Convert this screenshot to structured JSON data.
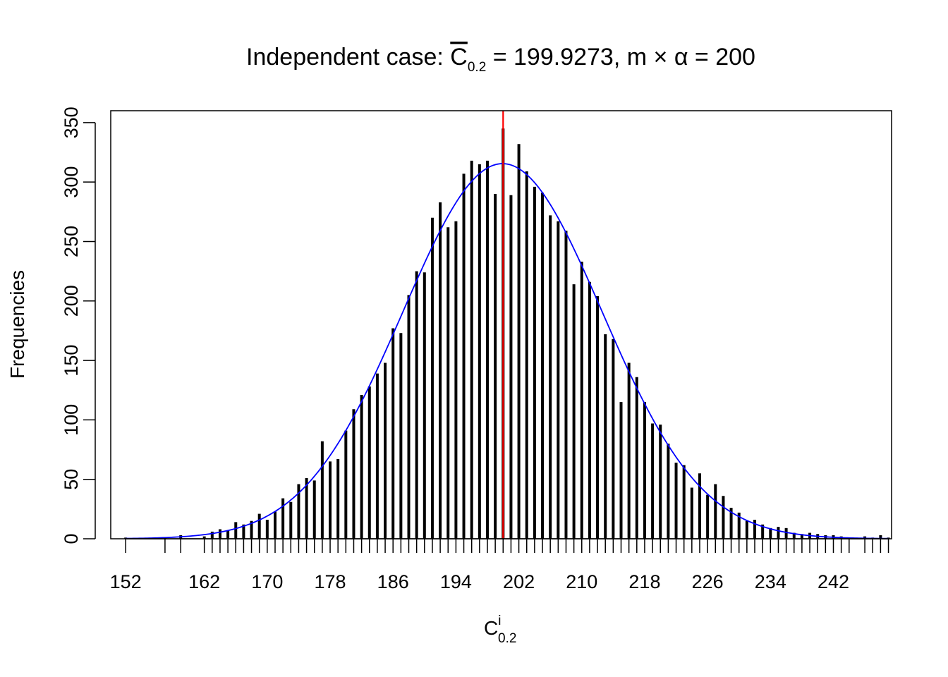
{
  "chart_data": {
    "type": "bar",
    "title": {
      "prefix": "Independent case: ",
      "stat_symbol": "C",
      "stat_subscript": "0.2",
      "stat_value": " = 199.9273, m ",
      "times_symbol": "×",
      "alpha_symbol": "α",
      "tail": " = 200"
    },
    "xlabel": {
      "symbol": "C",
      "superscript": "i",
      "subscript": "0.2"
    },
    "ylabel": "Frequencies",
    "xlim": [
      150.1,
      249.4
    ],
    "ylim": [
      0,
      360
    ],
    "x_ticks": [
      152,
      157,
      159,
      162,
      163,
      164,
      165,
      166,
      167,
      168,
      169,
      170,
      171,
      172,
      173,
      174,
      175,
      176,
      177,
      178,
      179,
      180,
      181,
      182,
      183,
      184,
      185,
      186,
      187,
      188,
      189,
      190,
      191,
      192,
      193,
      194,
      195,
      196,
      197,
      198,
      199,
      200,
      201,
      202,
      203,
      204,
      205,
      206,
      207,
      208,
      209,
      210,
      211,
      212,
      213,
      214,
      215,
      216,
      217,
      218,
      219,
      220,
      221,
      222,
      223,
      224,
      225,
      226,
      227,
      228,
      229,
      230,
      231,
      232,
      233,
      234,
      235,
      236,
      237,
      238,
      239,
      240,
      241,
      242,
      243,
      244,
      246,
      247,
      248,
      249
    ],
    "x_tick_labels": [
      "152",
      "162",
      "170",
      "178",
      "186",
      "194",
      "202",
      "210",
      "218",
      "226",
      "234",
      "242"
    ],
    "y_ticks": [
      0,
      50,
      100,
      150,
      200,
      250,
      300,
      350
    ],
    "y_tick_labels": [
      "0",
      "50",
      "100",
      "150",
      "200",
      "250",
      "300",
      "350"
    ],
    "x": [
      152,
      157,
      159,
      162,
      163,
      164,
      165,
      166,
      167,
      168,
      169,
      170,
      171,
      172,
      173,
      174,
      175,
      176,
      177,
      178,
      179,
      180,
      181,
      182,
      183,
      184,
      185,
      186,
      187,
      188,
      189,
      190,
      191,
      192,
      193,
      194,
      195,
      196,
      197,
      198,
      199,
      200,
      201,
      202,
      203,
      204,
      205,
      206,
      207,
      208,
      209,
      210,
      211,
      212,
      213,
      214,
      215,
      216,
      217,
      218,
      219,
      220,
      221,
      222,
      223,
      224,
      225,
      226,
      227,
      228,
      229,
      230,
      231,
      232,
      233,
      234,
      235,
      236,
      237,
      238,
      239,
      240,
      241,
      242,
      243,
      244,
      246,
      247,
      248,
      249
    ],
    "values": [
      1,
      1,
      3,
      2,
      6,
      8,
      7,
      14,
      12,
      15,
      21,
      16,
      23,
      34,
      31,
      46,
      51,
      49,
      82,
      65,
      67,
      91,
      109,
      121,
      128,
      139,
      148,
      177,
      173,
      205,
      225,
      224,
      270,
      283,
      262,
      267,
      307,
      318,
      315,
      318,
      290,
      345,
      289,
      332,
      309,
      296,
      291,
      272,
      267,
      259,
      214,
      233,
      216,
      204,
      172,
      168,
      115,
      148,
      136,
      115,
      97,
      96,
      80,
      64,
      62,
      43,
      55,
      37,
      46,
      36,
      26,
      22,
      15,
      16,
      12,
      9,
      10,
      9,
      5,
      4,
      5,
      4,
      3,
      3,
      2,
      1,
      2,
      1,
      3,
      1
    ],
    "bar_color": "#000000",
    "fitted_curve": {
      "type": "normal",
      "mean": 199.9273,
      "peak": 315.5,
      "sd": 12.64,
      "color": "#0000ff"
    },
    "reference_line": {
      "x": 200,
      "color": "#ff0000"
    },
    "grid": false,
    "legend": "none"
  }
}
